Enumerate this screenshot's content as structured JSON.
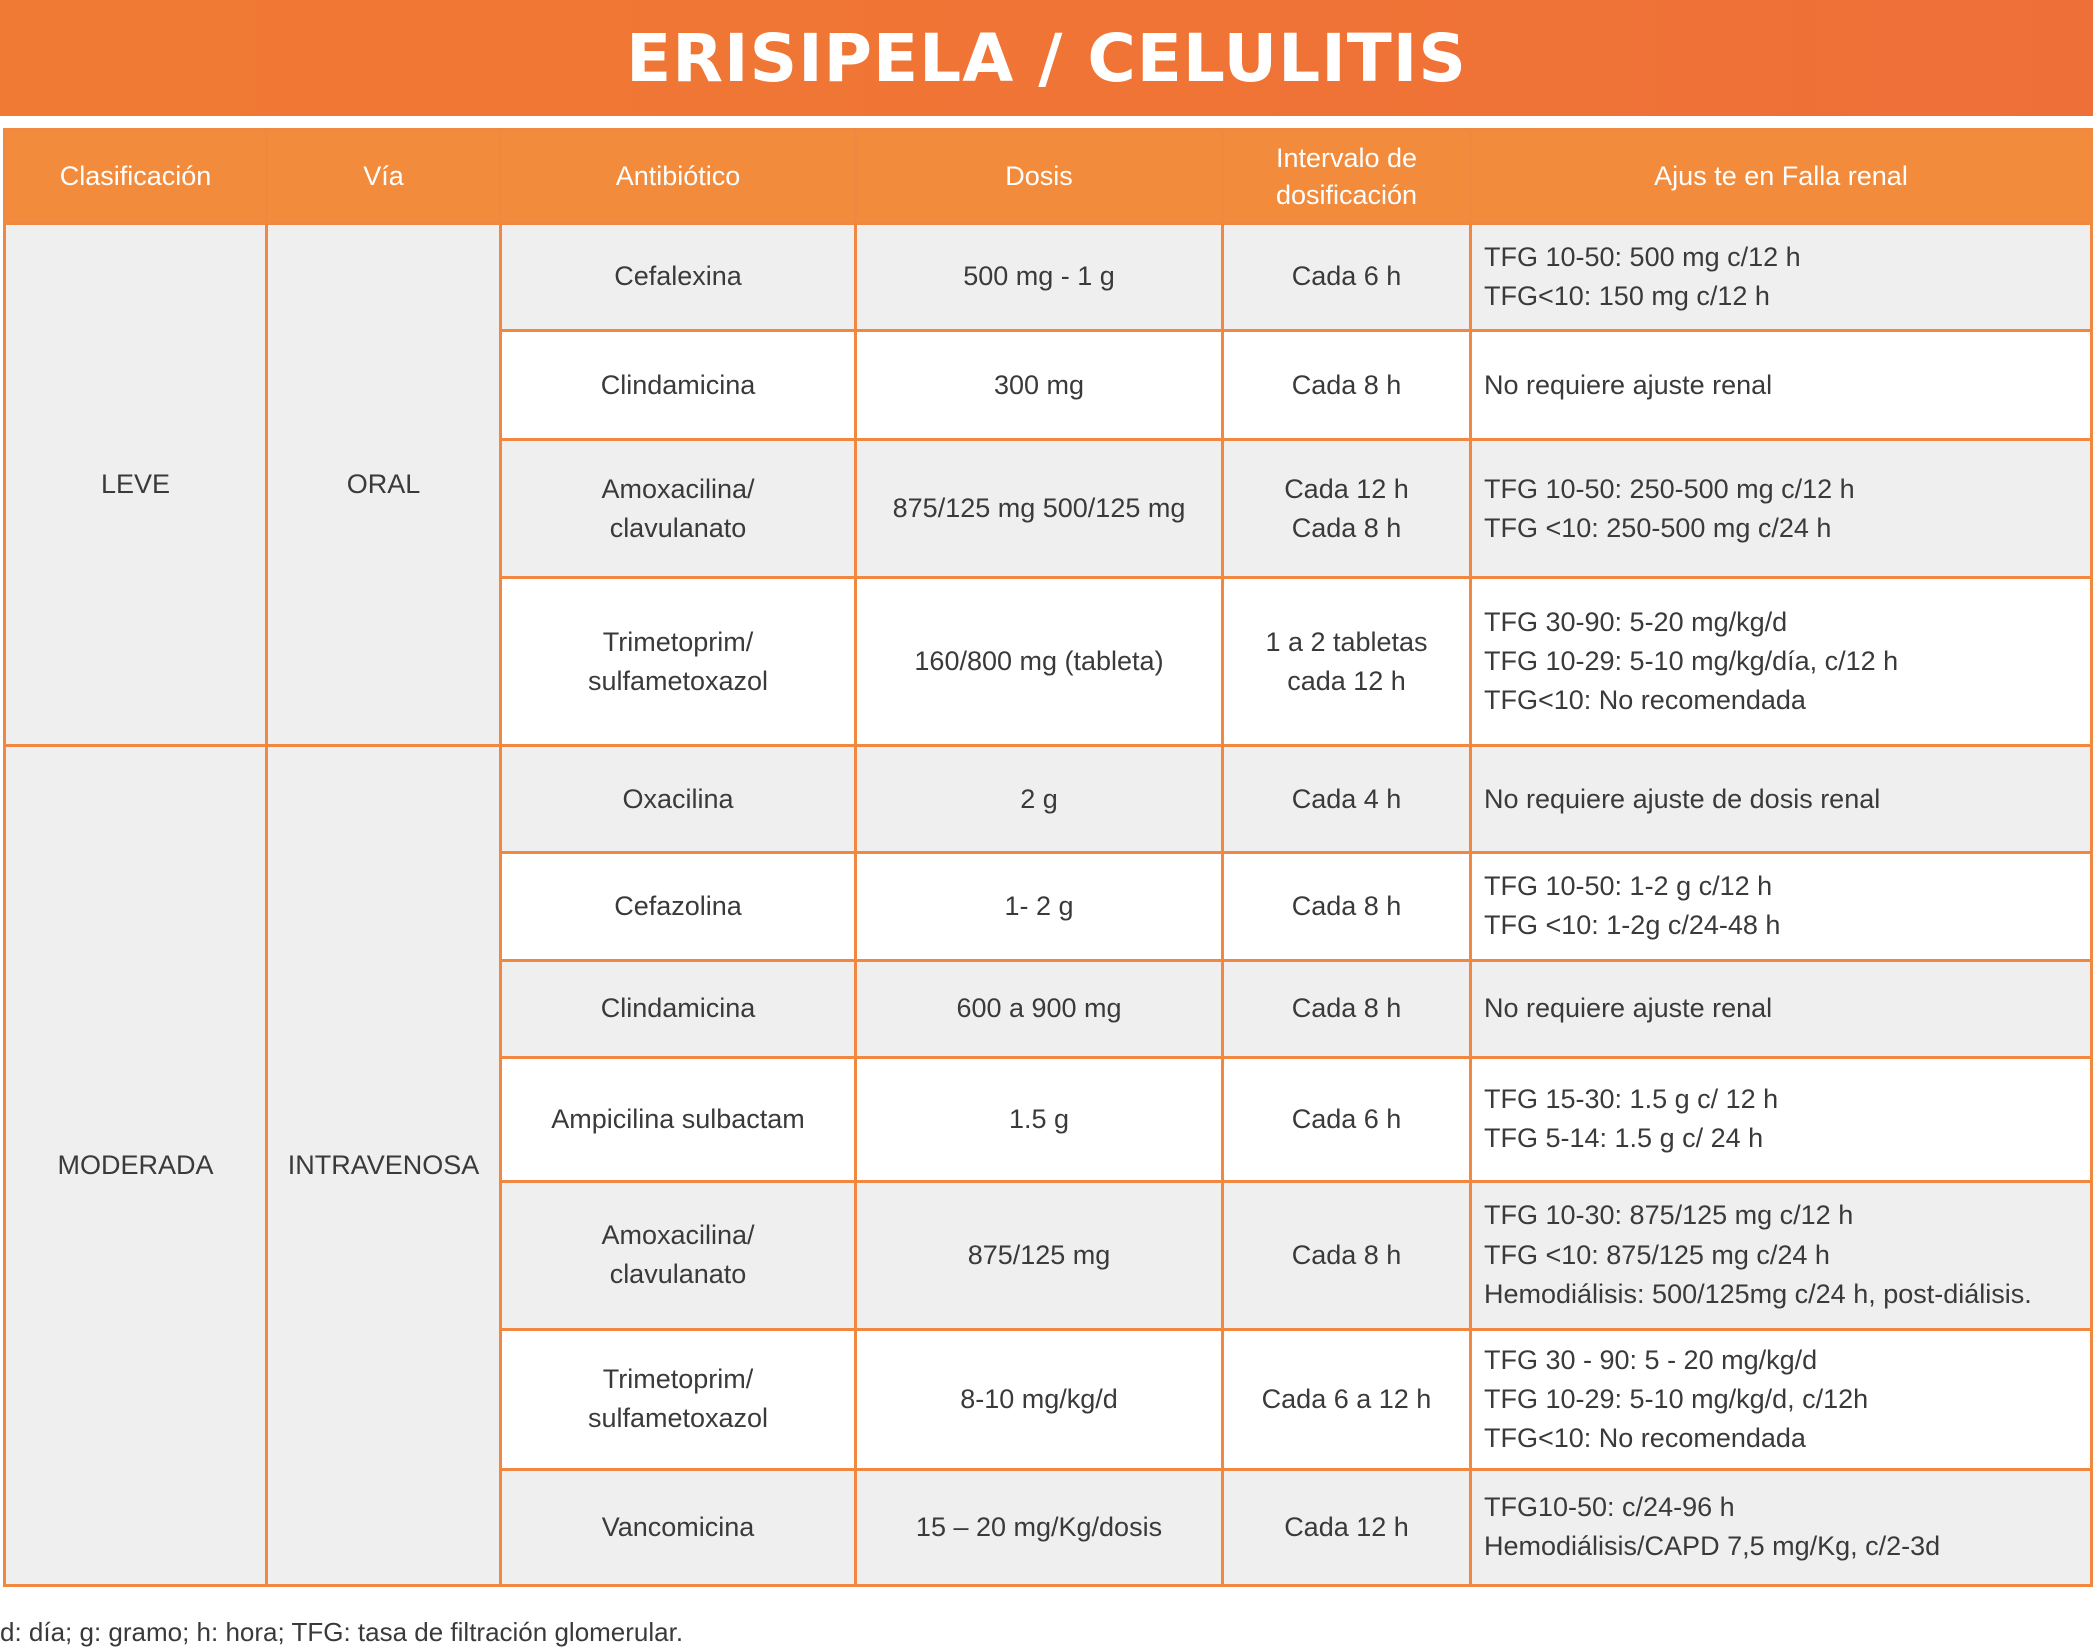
{
  "title": "ERISIPELA / CELULITIS",
  "headers": {
    "clasificacion": "Clasificación",
    "via": "Vía",
    "antibiotico": "Antibiótico",
    "dosis": "Dosis",
    "intervalo_1": "Intervalo de",
    "intervalo_2": "dosificación",
    "ajuste": "Ajus te en Falla renal"
  },
  "groups": [
    {
      "clasificacion": "LEVE",
      "via": "ORAL",
      "rows": [
        {
          "antibiotico": [
            "Cefalexina"
          ],
          "dosis": [
            "500 mg - 1 g"
          ],
          "intervalo": [
            "Cada 6 h"
          ],
          "ajuste": [
            "TFG 10-50: 500 mg c/12 h",
            "TFG<10: 150 mg c/12 h"
          ]
        },
        {
          "antibiotico": [
            "Clindamicina"
          ],
          "dosis": [
            "300 mg"
          ],
          "intervalo": [
            "Cada 8 h"
          ],
          "ajuste": [
            "No requiere ajuste renal"
          ]
        },
        {
          "antibiotico": [
            "Amoxacilina/",
            "clavulanato"
          ],
          "dosis": [
            "875/125 mg 500/125 mg"
          ],
          "intervalo": [
            "Cada 12 h",
            "Cada 8 h"
          ],
          "ajuste": [
            "TFG 10-50: 250-500 mg c/12 h",
            "TFG <10: 250-500 mg c/24 h"
          ]
        },
        {
          "antibiotico": [
            "Trimetoprim/",
            "sulfametoxazol"
          ],
          "dosis": [
            "160/800 mg (tableta)"
          ],
          "intervalo": [
            "1 a 2 tabletas",
            "cada 12 h"
          ],
          "ajuste": [
            "TFG 30-90: 5-20 mg/kg/d",
            "TFG 10-29: 5-10 mg/kg/día, c/12 h",
            "TFG<10: No recomendada"
          ]
        }
      ]
    },
    {
      "clasificacion": "MODERADA",
      "via": "INTRAVENOSA",
      "rows": [
        {
          "antibiotico": [
            "Oxacilina"
          ],
          "dosis": [
            "2 g"
          ],
          "intervalo": [
            "Cada 4 h"
          ],
          "ajuste": [
            "No requiere ajuste de dosis renal"
          ]
        },
        {
          "antibiotico": [
            "Cefazolina"
          ],
          "dosis": [
            "1- 2 g"
          ],
          "intervalo": [
            "Cada 8 h"
          ],
          "ajuste": [
            "TFG 10-50: 1-2 g c/12 h",
            "TFG <10: 1-2g c/24-48 h"
          ]
        },
        {
          "antibiotico": [
            "Clindamicina"
          ],
          "dosis": [
            "600 a 900 mg"
          ],
          "intervalo": [
            "Cada 8 h"
          ],
          "ajuste": [
            "No requiere ajuste renal"
          ]
        },
        {
          "antibiotico": [
            "Ampicilina sulbactam"
          ],
          "dosis": [
            "1.5 g"
          ],
          "intervalo": [
            "Cada 6 h"
          ],
          "ajuste": [
            "TFG 15-30: 1.5 g c/ 12 h",
            "TFG 5-14: 1.5 g c/ 24 h"
          ]
        },
        {
          "antibiotico": [
            "Amoxacilina/",
            "clavulanato"
          ],
          "dosis": [
            "875/125 mg"
          ],
          "intervalo": [
            "Cada 8 h"
          ],
          "ajuste": [
            "TFG 10-30: 875/125 mg c/12 h",
            "TFG <10: 875/125 mg c/24 h",
            "Hemodiálisis: 500/125mg c/24 h, post-diálisis."
          ]
        },
        {
          "antibiotico": [
            "Trimetoprim/",
            "sulfametoxazol"
          ],
          "dosis": [
            "8-10 mg/kg/d"
          ],
          "intervalo": [
            "Cada 6 a 12 h"
          ],
          "ajuste": [
            "TFG 30 - 90: 5 - 20 mg/kg/d",
            "TFG 10-29: 5-10 mg/kg/d, c/12h",
            "TFG<10: No recomendada"
          ]
        },
        {
          "antibiotico": [
            "Vancomicina"
          ],
          "dosis": [
            "15 – 20 mg/Kg/dosis"
          ],
          "intervalo": [
            "Cada 12 h"
          ],
          "ajuste": [
            "TFG10-50: c/24-96 h",
            "Hemodiálisis/CAPD 7,5 mg/Kg, c/2-3d"
          ]
        }
      ]
    }
  ],
  "footnote": "d: día; g: gramo; h: hora; TFG: tasa de filtración glomerular."
}
